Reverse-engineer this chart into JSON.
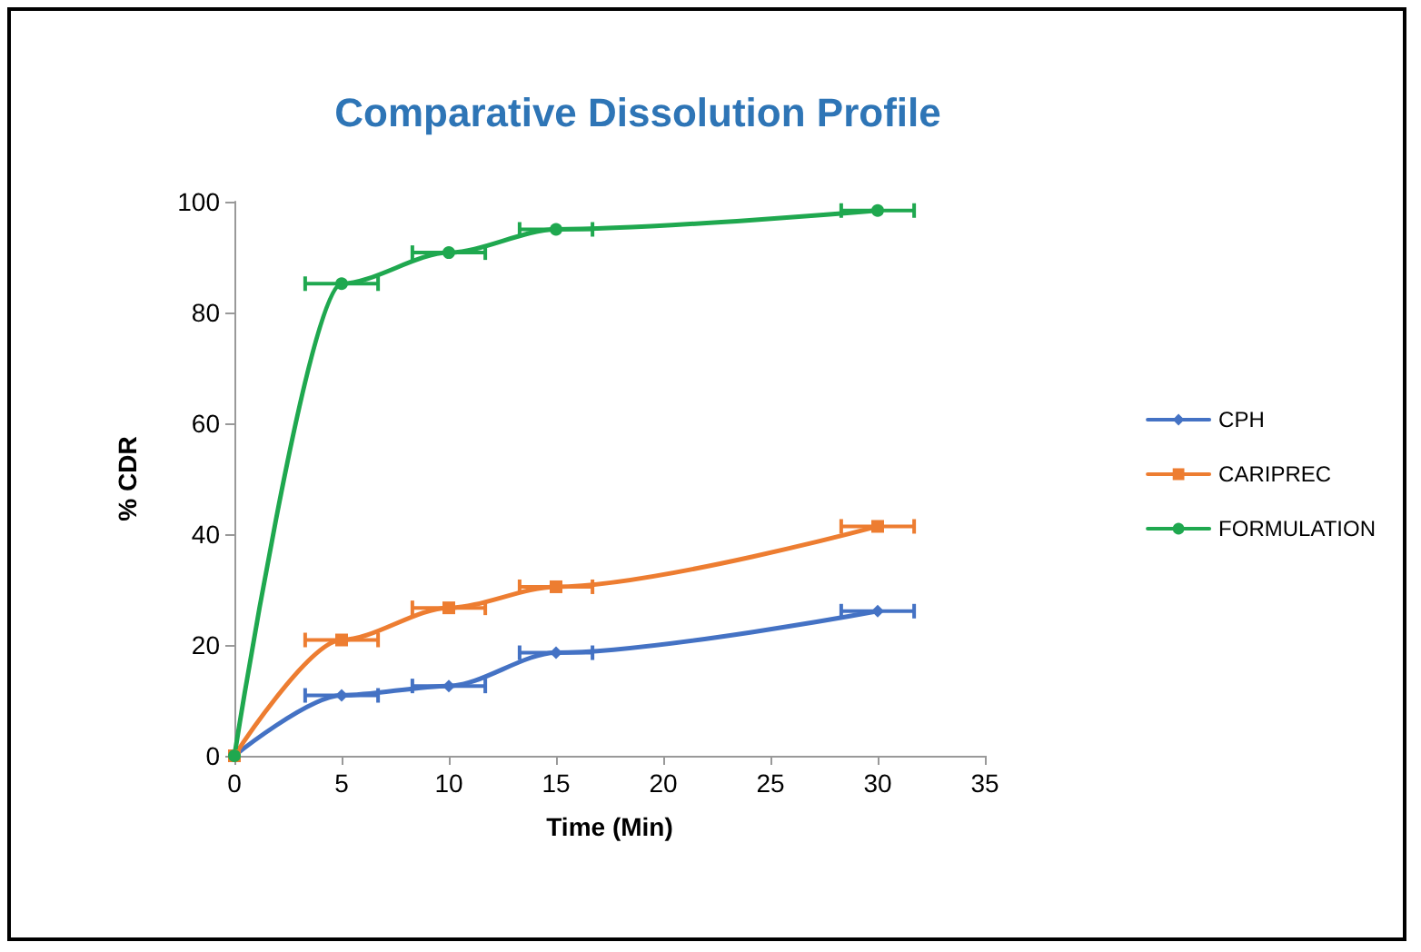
{
  "chart_data": {
    "type": "line",
    "title": "Comparative Dissolution Profile",
    "xlabel": "Time (Min)",
    "ylabel": "% CDR",
    "x": [
      0,
      5,
      10,
      15,
      30
    ],
    "series": [
      {
        "name": "CPH",
        "color": "#4472c4",
        "marker": "diamond",
        "values": [
          0,
          10.9,
          12.6,
          18.6,
          26.1
        ],
        "xerrors": [
          null,
          1.7,
          1.7,
          1.7,
          1.7
        ]
      },
      {
        "name": "CARIPREC",
        "color": "#ed7d31",
        "marker": "square",
        "values": [
          0,
          20.9,
          26.7,
          30.5,
          41.4
        ],
        "xerrors": [
          null,
          1.7,
          1.7,
          1.7,
          1.7
        ]
      },
      {
        "name": "FORMULATION",
        "color": "#1fa84f",
        "marker": "circle",
        "values": [
          0,
          85.2,
          90.8,
          95,
          98.4
        ],
        "xerrors": [
          null,
          1.7,
          1.7,
          1.7,
          1.7
        ]
      }
    ],
    "xlim": [
      0,
      35
    ],
    "xticks": [
      0,
      5,
      10,
      15,
      20,
      25,
      30,
      35
    ],
    "ylim": [
      0,
      100
    ],
    "yticks": [
      0,
      20,
      40,
      60,
      80,
      100
    ],
    "grid": false,
    "legend": "right"
  }
}
